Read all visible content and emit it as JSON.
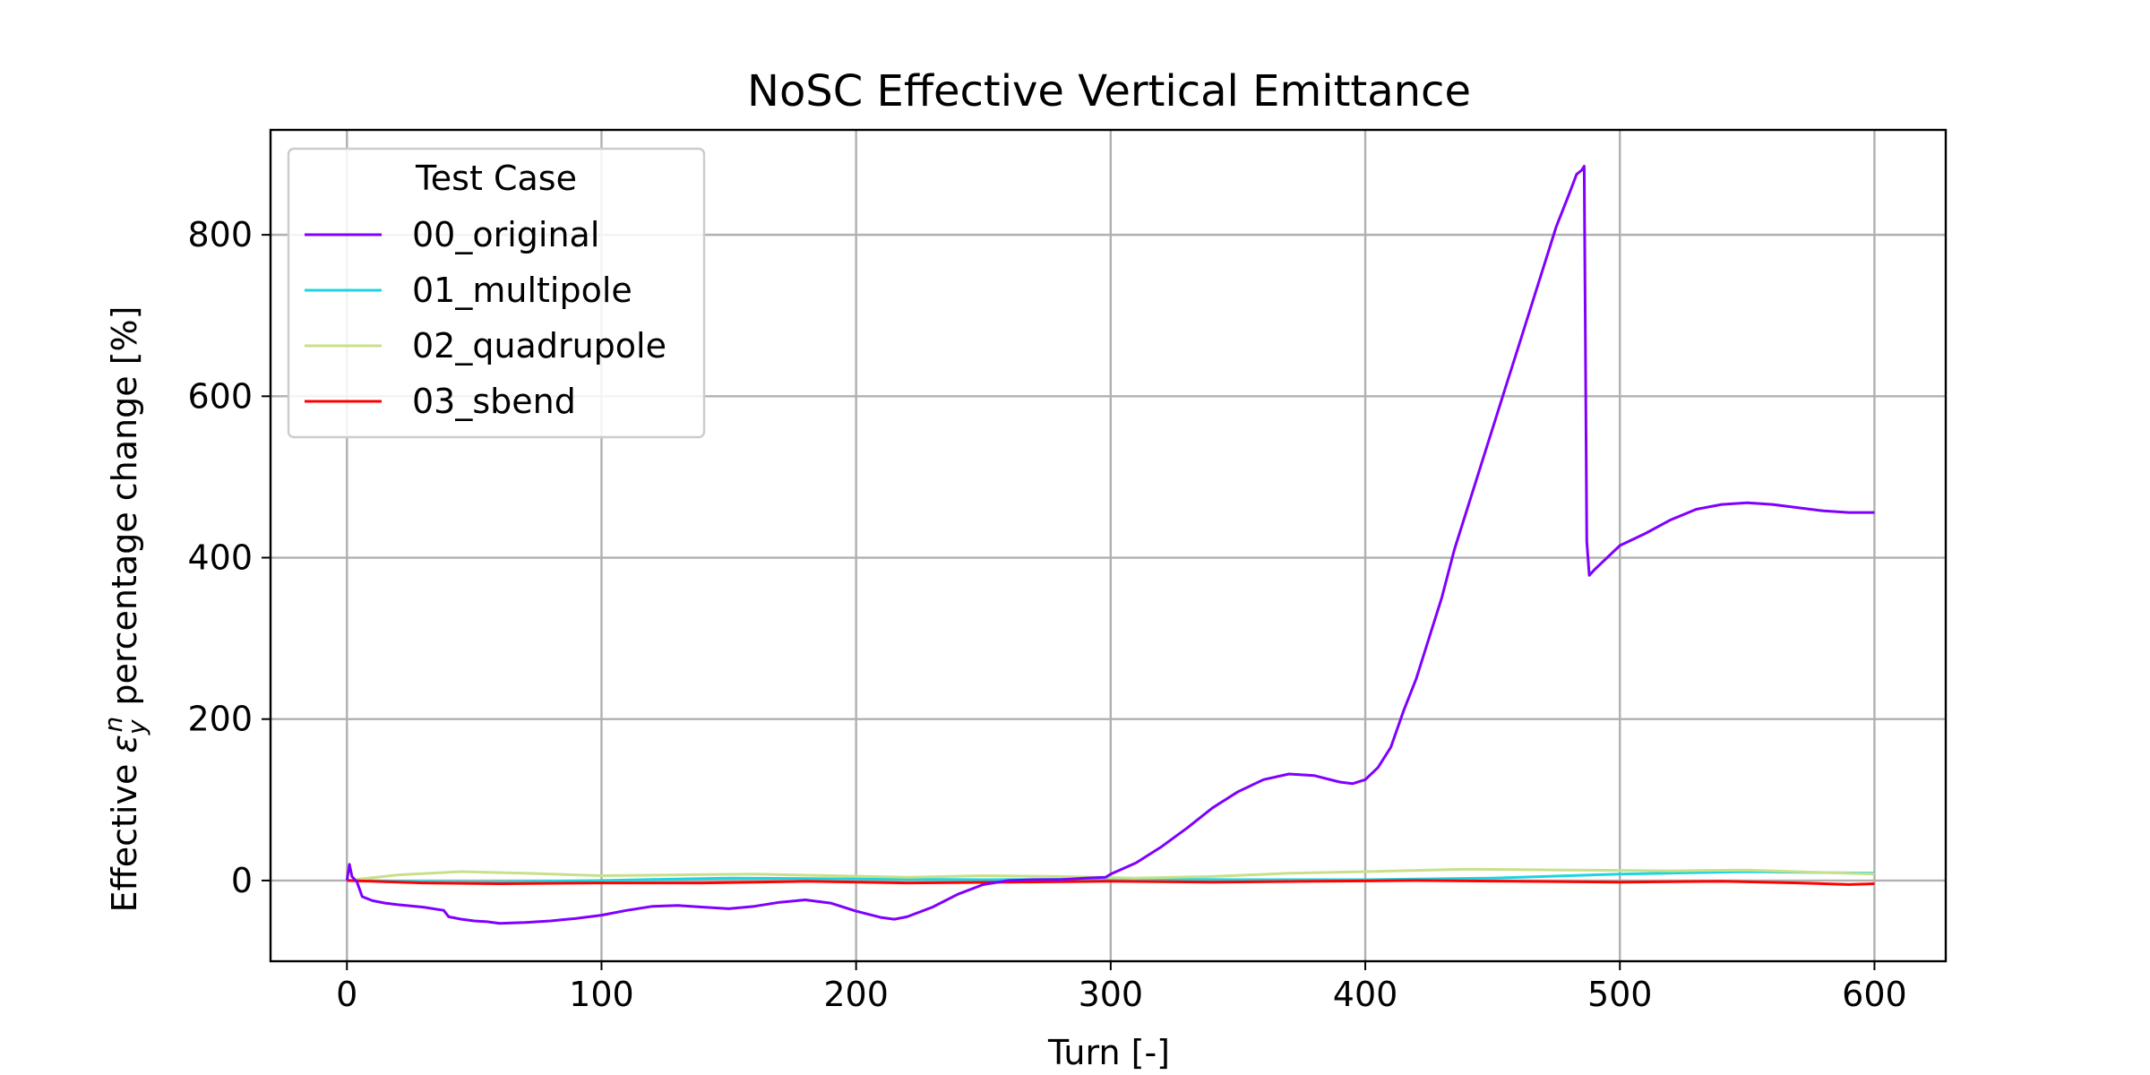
{
  "chart_data": {
    "type": "line",
    "title": "NoSC Effective Vertical Emittance",
    "xlabel": "Turn [-]",
    "ylabel_prefix": "Effective ",
    "ylabel_symbol": "ε",
    "ylabel_sub": "y",
    "ylabel_sup": "n",
    "ylabel_suffix": " percentage change [%]",
    "xlim": [
      -30,
      628
    ],
    "ylim": [
      -100,
      930
    ],
    "xticks": [
      0,
      100,
      200,
      300,
      400,
      500,
      600
    ],
    "yticks": [
      0,
      200,
      400,
      600,
      800
    ],
    "grid": true,
    "legend": {
      "title": "Test Case",
      "placement": "upper-left"
    },
    "series": [
      {
        "name": "00_original",
        "color": "#8000ff",
        "x": [
          0,
          1,
          2,
          4,
          6,
          10,
          15,
          20,
          30,
          38,
          40,
          45,
          50,
          55,
          60,
          70,
          80,
          90,
          100,
          110,
          120,
          130,
          140,
          150,
          160,
          170,
          180,
          190,
          200,
          210,
          215,
          220,
          230,
          240,
          250,
          260,
          270,
          280,
          290,
          298,
          300,
          310,
          320,
          330,
          340,
          350,
          360,
          370,
          380,
          390,
          395,
          400,
          405,
          410,
          415,
          420,
          425,
          430,
          435,
          440,
          445,
          450,
          455,
          460,
          465,
          470,
          475,
          480,
          483,
          485,
          486,
          487,
          488,
          490,
          495,
          500,
          510,
          520,
          530,
          540,
          550,
          560,
          570,
          580,
          590,
          600
        ],
        "y": [
          0,
          20,
          5,
          -2,
          -20,
          -25,
          -28,
          -30,
          -33,
          -37,
          -45,
          -48,
          -50,
          -51,
          -53,
          -52,
          -50,
          -47,
          -43,
          -37,
          -32,
          -31,
          -33,
          -35,
          -32,
          -27,
          -24,
          -28,
          -38,
          -46,
          -48,
          -45,
          -33,
          -17,
          -5,
          0,
          1,
          1,
          3,
          4,
          8,
          22,
          42,
          65,
          90,
          110,
          125,
          132,
          130,
          122,
          120,
          125,
          140,
          165,
          210,
          250,
          300,
          350,
          410,
          460,
          510,
          560,
          610,
          660,
          710,
          760,
          810,
          850,
          875,
          880,
          885,
          420,
          378,
          385,
          400,
          415,
          430,
          447,
          460,
          466,
          468,
          466,
          462,
          458,
          456,
          456
        ]
      },
      {
        "name": "01_multipole",
        "color": "#1cd5e1",
        "x": [
          0,
          50,
          100,
          150,
          200,
          250,
          300,
          350,
          400,
          450,
          500,
          550,
          600
        ],
        "y": [
          0,
          -2,
          0,
          3,
          2,
          1,
          2,
          1,
          1,
          3,
          8,
          11,
          9
        ]
      },
      {
        "name": "02_quadrupole",
        "color": "#c8e08a",
        "x": [
          0,
          20,
          45,
          70,
          100,
          130,
          160,
          190,
          220,
          250,
          280,
          310,
          340,
          370,
          400,
          440,
          480,
          520,
          550,
          580,
          600
        ],
        "y": [
          0,
          7,
          11,
          9,
          6,
          7,
          8,
          6,
          4,
          6,
          5,
          3,
          5,
          9,
          11,
          14,
          13,
          12,
          13,
          10,
          8
        ]
      },
      {
        "name": "03_sbend",
        "color": "#ff0000",
        "x": [
          0,
          30,
          60,
          100,
          140,
          180,
          220,
          260,
          300,
          340,
          380,
          420,
          460,
          500,
          540,
          570,
          590,
          600
        ],
        "y": [
          0,
          -3,
          -4,
          -3,
          -3,
          -1,
          -3,
          -2,
          -1,
          -2,
          -1,
          0,
          -1,
          -2,
          -1,
          -3,
          -5,
          -4
        ]
      }
    ]
  }
}
